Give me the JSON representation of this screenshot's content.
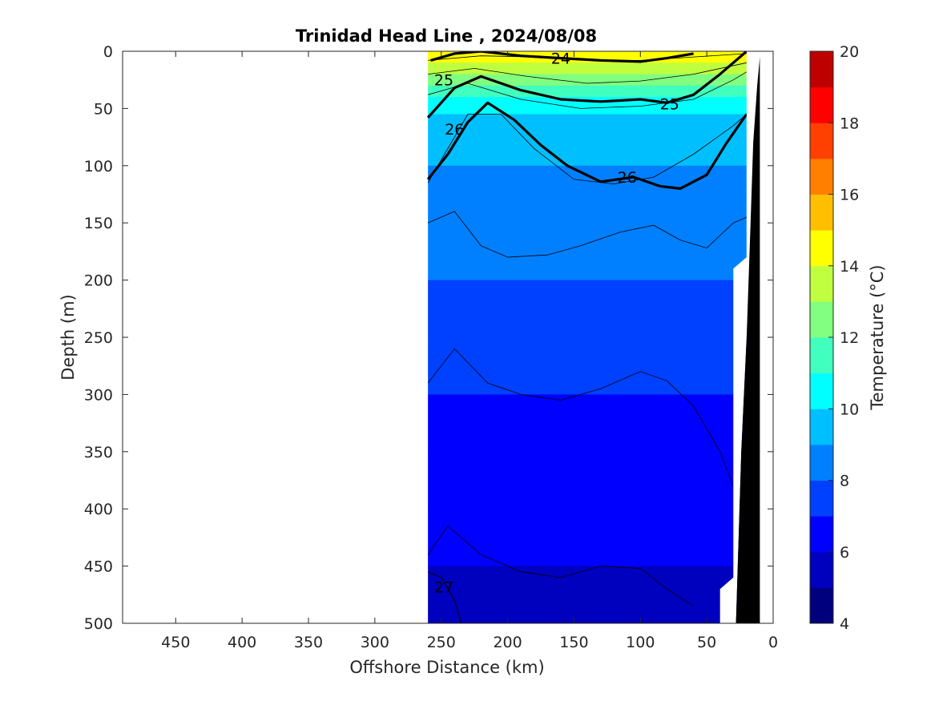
{
  "chart_data": {
    "type": "heatmap",
    "title": "Trinidad Head Line , 2024/08/08",
    "xlabel": "Offshore Distance (km)",
    "ylabel": "Depth (m)",
    "xlim": [
      490,
      0
    ],
    "ylim": [
      0,
      500
    ],
    "x_ticks": [
      "450",
      "400",
      "350",
      "300",
      "250",
      "200",
      "150",
      "100",
      "50",
      "0"
    ],
    "y_ticks": [
      "0",
      "50",
      "100",
      "150",
      "200",
      "250",
      "300",
      "350",
      "400",
      "450",
      "500"
    ],
    "colorbar": {
      "label": "Temperature (°C)",
      "range": [
        4,
        20
      ],
      "ticks": [
        "4",
        "6",
        "8",
        "10",
        "12",
        "14",
        "16",
        "18",
        "20"
      ],
      "colors": [
        "#00007f",
        "#0000bf",
        "#0000ff",
        "#0040ff",
        "#0080ff",
        "#00bfff",
        "#00ffff",
        "#40ffbf",
        "#80ff80",
        "#bfff40",
        "#ffff00",
        "#ffbf00",
        "#ff8000",
        "#ff4000",
        "#ff0000",
        "#bf0000"
      ]
    },
    "data_extent_km": [
      260,
      20
    ],
    "temperature_profile": [
      {
        "depth": 0,
        "temp": 15.0
      },
      {
        "depth": 10,
        "temp": 14.2
      },
      {
        "depth": 20,
        "temp": 13.0
      },
      {
        "depth": 30,
        "temp": 12.0
      },
      {
        "depth": 40,
        "temp": 11.0
      },
      {
        "depth": 55,
        "temp": 10.0
      },
      {
        "depth": 75,
        "temp": 9.5
      },
      {
        "depth": 100,
        "temp": 9.0
      },
      {
        "depth": 150,
        "temp": 8.5
      },
      {
        "depth": 200,
        "temp": 8.0
      },
      {
        "depth": 250,
        "temp": 7.6
      },
      {
        "depth": 300,
        "temp": 7.0
      },
      {
        "depth": 350,
        "temp": 6.6
      },
      {
        "depth": 400,
        "temp": 6.3
      },
      {
        "depth": 450,
        "temp": 6.0
      },
      {
        "depth": 500,
        "temp": 5.6
      }
    ],
    "isotherm_depth_curves": [
      {
        "level": 14,
        "points": [
          [
            260,
            8
          ],
          [
            220,
            4
          ],
          [
            180,
            5
          ],
          [
            140,
            8
          ],
          [
            100,
            8
          ],
          [
            60,
            5
          ],
          [
            20,
            2
          ]
        ]
      },
      {
        "level": 12,
        "points": [
          [
            260,
            20
          ],
          [
            225,
            15
          ],
          [
            185,
            22
          ],
          [
            140,
            28
          ],
          [
            100,
            26
          ],
          [
            60,
            20
          ],
          [
            20,
            10
          ]
        ]
      },
      {
        "level": 10,
        "points": [
          [
            260,
            38
          ],
          [
            230,
            28
          ],
          [
            190,
            42
          ],
          [
            145,
            50
          ],
          [
            100,
            48
          ],
          [
            60,
            42
          ],
          [
            30,
            25
          ],
          [
            20,
            18
          ]
        ]
      },
      {
        "level": 8,
        "points": [
          [
            260,
            115
          ],
          [
            230,
            55
          ],
          [
            205,
            55
          ],
          [
            180,
            85
          ],
          [
            150,
            112
          ],
          [
            120,
            116
          ],
          [
            90,
            110
          ],
          [
            60,
            90
          ],
          [
            30,
            65
          ],
          [
            20,
            55
          ]
        ]
      },
      {
        "level": 7.5,
        "points": [
          [
            260,
            150
          ],
          [
            240,
            140
          ],
          [
            220,
            170
          ],
          [
            200,
            180
          ],
          [
            170,
            178
          ],
          [
            145,
            170
          ],
          [
            115,
            158
          ],
          [
            90,
            152
          ],
          [
            70,
            165
          ],
          [
            50,
            172
          ],
          [
            30,
            150
          ],
          [
            20,
            145
          ]
        ]
      },
      {
        "level": 7,
        "points": [
          [
            260,
            290
          ],
          [
            240,
            260
          ],
          [
            215,
            290
          ],
          [
            190,
            300
          ],
          [
            160,
            305
          ],
          [
            130,
            295
          ],
          [
            100,
            280
          ],
          [
            80,
            288
          ],
          [
            60,
            310
          ],
          [
            40,
            350
          ],
          [
            30,
            380
          ]
        ]
      },
      {
        "level": 6,
        "points": [
          [
            260,
            440
          ],
          [
            245,
            415
          ],
          [
            220,
            440
          ],
          [
            190,
            455
          ],
          [
            160,
            460
          ],
          [
            130,
            450
          ],
          [
            100,
            452
          ],
          [
            80,
            470
          ],
          [
            60,
            485
          ]
        ]
      }
    ],
    "sigma_contours": [
      {
        "label": "24",
        "bold": true,
        "points": [
          [
            258,
            8
          ],
          [
            240,
            2
          ],
          [
            220,
            0
          ],
          [
            190,
            4
          ],
          [
            160,
            6
          ],
          [
            130,
            8
          ],
          [
            100,
            9
          ],
          [
            80,
            6
          ],
          [
            60,
            2
          ]
        ]
      },
      {
        "label": "25",
        "bold": true,
        "points": [
          [
            260,
            58
          ],
          [
            240,
            32
          ],
          [
            220,
            22
          ],
          [
            190,
            34
          ],
          [
            160,
            42
          ],
          [
            130,
            44
          ],
          [
            100,
            42
          ],
          [
            80,
            45
          ],
          [
            60,
            38
          ],
          [
            40,
            20
          ],
          [
            20,
            0
          ]
        ]
      },
      {
        "label": "26",
        "bold": true,
        "points": [
          [
            260,
            112
          ],
          [
            245,
            90
          ],
          [
            230,
            62
          ],
          [
            215,
            45
          ],
          [
            195,
            60
          ],
          [
            175,
            82
          ],
          [
            155,
            100
          ],
          [
            130,
            114
          ],
          [
            105,
            110
          ],
          [
            85,
            118
          ],
          [
            70,
            120
          ],
          [
            50,
            108
          ],
          [
            35,
            80
          ],
          [
            20,
            55
          ]
        ]
      },
      {
        "label": "27",
        "bold": false,
        "points": [
          [
            260,
            455
          ],
          [
            250,
            460
          ],
          [
            240,
            480
          ],
          [
            235,
            500
          ]
        ]
      }
    ],
    "contour_labels": [
      {
        "text": "24",
        "x": 160,
        "y": 6
      },
      {
        "text": "25",
        "x": 78,
        "y": 46
      },
      {
        "text": "25",
        "x": 248,
        "y": 25
      },
      {
        "text": "26",
        "x": 110,
        "y": 110
      },
      {
        "text": "26",
        "x": 240,
        "y": 68
      },
      {
        "text": "27",
        "x": 248,
        "y": 468
      }
    ],
    "bathymetry": {
      "fill": "#000000",
      "points": [
        [
          28,
          500
        ],
        [
          24,
          350
        ],
        [
          20,
          250
        ],
        [
          17,
          150
        ],
        [
          15,
          80
        ],
        [
          12,
          30
        ],
        [
          10,
          5
        ],
        [
          10,
          500
        ]
      ]
    },
    "blank_region": {
      "fill": "#ffffff",
      "points": [
        [
          28,
          500
        ],
        [
          24,
          350
        ],
        [
          20,
          250
        ],
        [
          17,
          150
        ],
        [
          15,
          80
        ],
        [
          12,
          30
        ],
        [
          10,
          5
        ],
        [
          10,
          0
        ],
        [
          20,
          0
        ],
        [
          20,
          180
        ],
        [
          30,
          190
        ],
        [
          30,
          460
        ],
        [
          40,
          470
        ],
        [
          40,
          500
        ]
      ]
    }
  }
}
